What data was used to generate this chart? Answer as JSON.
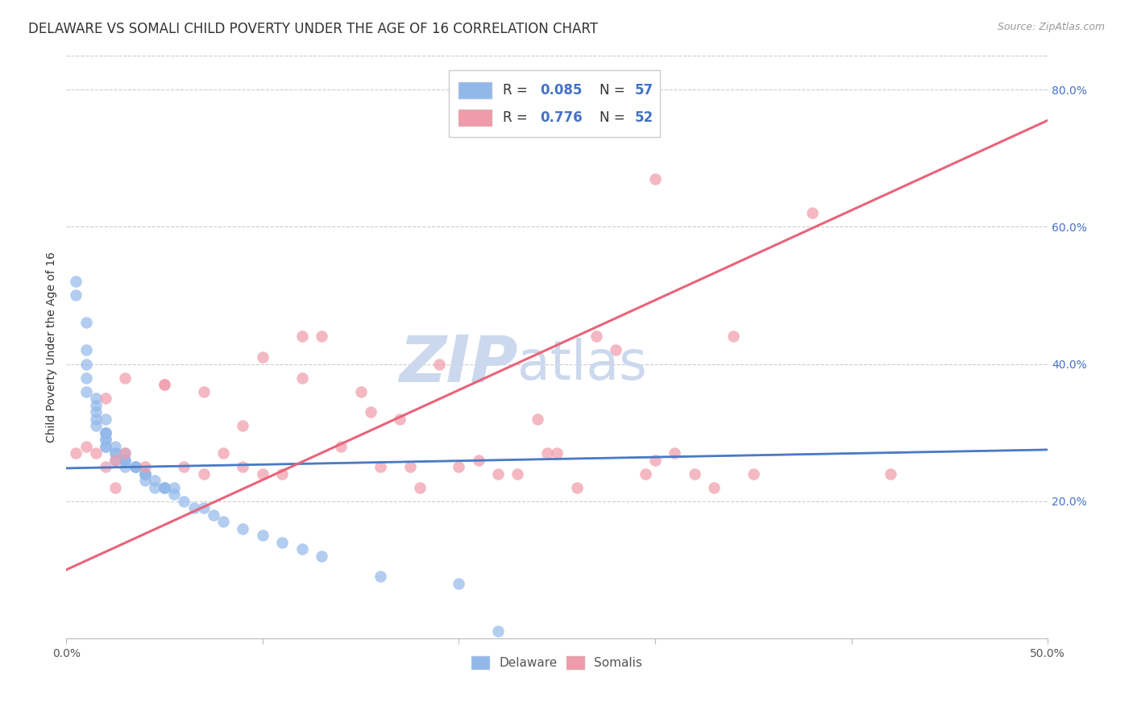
{
  "title": "DELAWARE VS SOMALI CHILD POVERTY UNDER THE AGE OF 16 CORRELATION CHART",
  "source": "Source: ZipAtlas.com",
  "ylabel": "Child Poverty Under the Age of 16",
  "xlim": [
    0.0,
    0.5
  ],
  "ylim": [
    0.0,
    0.85
  ],
  "xtick_vals": [
    0.0,
    0.1,
    0.2,
    0.3,
    0.4,
    0.5
  ],
  "xtick_labels": [
    "0.0%",
    "",
    "",
    "",
    "",
    "50.0%"
  ],
  "ytick_labels_right": [
    "20.0%",
    "40.0%",
    "60.0%",
    "80.0%"
  ],
  "ytick_positions_right": [
    0.2,
    0.4,
    0.6,
    0.8
  ],
  "grid_color": "#cccccc",
  "background_color": "#ffffff",
  "watermark_zip": "ZIP",
  "watermark_atlas": "atlas",
  "watermark_color": "#ccd8ed",
  "legend_r1_label": "R = ",
  "legend_r1_val": "0.085",
  "legend_n1_label": "N = ",
  "legend_n1_val": "57",
  "legend_r2_label": "R = ",
  "legend_r2_val": "0.776",
  "legend_n2_label": "N = ",
  "legend_n2_val": "52",
  "delaware_color": "#92b8ea",
  "somali_color": "#f09baa",
  "delaware_line_color": "#4a7bc4",
  "somali_line_color": "#e8647a",
  "blue_text_color": "#4472c4",
  "dark_text_color": "#333333",
  "delaware_x": [
    0.005,
    0.005,
    0.01,
    0.01,
    0.01,
    0.01,
    0.01,
    0.015,
    0.015,
    0.015,
    0.015,
    0.015,
    0.02,
    0.02,
    0.02,
    0.02,
    0.02,
    0.02,
    0.02,
    0.02,
    0.025,
    0.025,
    0.025,
    0.025,
    0.03,
    0.03,
    0.03,
    0.03,
    0.03,
    0.035,
    0.035,
    0.035,
    0.04,
    0.04,
    0.04,
    0.04,
    0.04,
    0.045,
    0.045,
    0.05,
    0.05,
    0.05,
    0.055,
    0.055,
    0.06,
    0.065,
    0.07,
    0.075,
    0.08,
    0.09,
    0.1,
    0.11,
    0.12,
    0.13,
    0.16,
    0.2,
    0.22
  ],
  "delaware_y": [
    0.5,
    0.52,
    0.46,
    0.42,
    0.4,
    0.38,
    0.36,
    0.34,
    0.35,
    0.33,
    0.32,
    0.31,
    0.3,
    0.29,
    0.3,
    0.3,
    0.29,
    0.28,
    0.32,
    0.28,
    0.28,
    0.27,
    0.27,
    0.26,
    0.27,
    0.25,
    0.26,
    0.26,
    0.26,
    0.25,
    0.25,
    0.25,
    0.24,
    0.24,
    0.24,
    0.23,
    0.24,
    0.22,
    0.23,
    0.22,
    0.22,
    0.22,
    0.22,
    0.21,
    0.2,
    0.19,
    0.19,
    0.18,
    0.17,
    0.16,
    0.15,
    0.14,
    0.13,
    0.12,
    0.09,
    0.08,
    0.01
  ],
  "somali_x": [
    0.005,
    0.01,
    0.015,
    0.02,
    0.02,
    0.025,
    0.025,
    0.03,
    0.03,
    0.04,
    0.05,
    0.05,
    0.06,
    0.07,
    0.07,
    0.08,
    0.09,
    0.09,
    0.1,
    0.1,
    0.11,
    0.12,
    0.12,
    0.13,
    0.14,
    0.15,
    0.155,
    0.16,
    0.17,
    0.175,
    0.18,
    0.19,
    0.2,
    0.21,
    0.22,
    0.23,
    0.24,
    0.245,
    0.25,
    0.26,
    0.27,
    0.28,
    0.295,
    0.3,
    0.3,
    0.31,
    0.32,
    0.33,
    0.34,
    0.35,
    0.38,
    0.42
  ],
  "somali_y": [
    0.27,
    0.28,
    0.27,
    0.25,
    0.35,
    0.22,
    0.26,
    0.27,
    0.38,
    0.25,
    0.37,
    0.37,
    0.25,
    0.24,
    0.36,
    0.27,
    0.25,
    0.31,
    0.24,
    0.41,
    0.24,
    0.44,
    0.38,
    0.44,
    0.28,
    0.36,
    0.33,
    0.25,
    0.32,
    0.25,
    0.22,
    0.4,
    0.25,
    0.26,
    0.24,
    0.24,
    0.32,
    0.27,
    0.27,
    0.22,
    0.44,
    0.42,
    0.24,
    0.26,
    0.67,
    0.27,
    0.24,
    0.22,
    0.44,
    0.24,
    0.62,
    0.24
  ],
  "delaware_line_x0": 0.0,
  "delaware_line_x1": 0.5,
  "delaware_line_y0": 0.248,
  "delaware_line_y1": 0.275,
  "somali_line_x0": 0.0,
  "somali_line_x1": 0.5,
  "somali_line_y0": 0.1,
  "somali_line_y1": 0.755,
  "title_fontsize": 12,
  "axis_label_fontsize": 10,
  "tick_fontsize": 10,
  "legend_fontsize": 12
}
